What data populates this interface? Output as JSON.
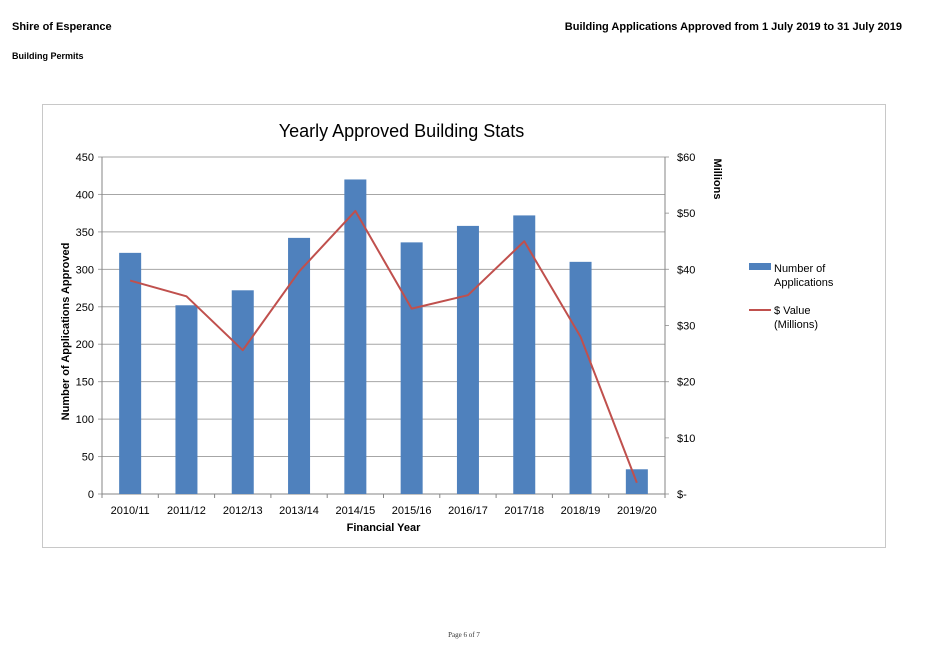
{
  "header": {
    "org": "Shire of Esperance",
    "report_title": "Building Applications Approved from 1 July 2019 to 31 July 2019",
    "section": "Building Permits"
  },
  "footer": {
    "page": "Page 6 of 7"
  },
  "colors": {
    "bar": "#4f81bd",
    "line": "#c0504d",
    "grid": "#a6a6a6"
  },
  "chart_data": {
    "type": "bar",
    "title": "Yearly Approved Building Stats",
    "xlabel": "Financial Year",
    "ylabel": "Number of Applications Approved",
    "y2label": "Millions",
    "categories": [
      "2010/11",
      "2011/12",
      "2012/13",
      "2013/14",
      "2014/15",
      "2015/16",
      "2016/17",
      "2017/18",
      "2018/19",
      "2019/20"
    ],
    "ylim": [
      0,
      450
    ],
    "y_ticks": [
      0,
      50,
      100,
      150,
      200,
      250,
      300,
      350,
      400,
      450
    ],
    "y2lim": [
      0,
      60
    ],
    "y2_ticks": [
      0,
      10,
      20,
      30,
      40,
      50,
      60
    ],
    "y2_tick_labels": [
      "$-",
      "$10",
      "$20",
      "$30",
      "$40",
      "$50",
      "$60"
    ],
    "grid": true,
    "legend_position": "right",
    "series": [
      {
        "name": "Number of Applications",
        "type": "bar",
        "axis": "left",
        "values": [
          322,
          252,
          272,
          342,
          420,
          336,
          358,
          372,
          310,
          33
        ]
      },
      {
        "name": "$ Value (Millions)",
        "type": "line",
        "axis": "right",
        "values": [
          38,
          35.2,
          25.6,
          39.6,
          50.4,
          33,
          35.4,
          45,
          28,
          2
        ]
      }
    ],
    "legend": [
      {
        "lines": [
          "Number of",
          "Applications"
        ]
      },
      {
        "lines": [
          "$ Value",
          "(Millions)"
        ]
      }
    ]
  }
}
